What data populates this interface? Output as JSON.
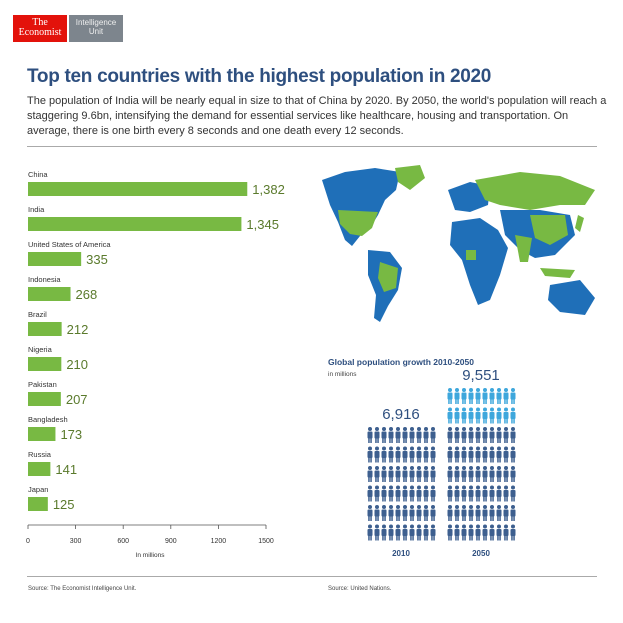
{
  "logo": {
    "brand": "The Economist",
    "unit": "Intelligence Unit"
  },
  "title": "Top ten countries with the highest population in 2020",
  "subtitle": "The population of India will be nearly equal in size to that of China by 2020. By 2050, the world's population will reach a staggering 9.6bn, intensifying the demand for essential services like healthcare, housing and transportation. On average, there is one birth every 8 seconds and one death every 12 seconds.",
  "chart_data": [
    {
      "type": "bar",
      "orientation": "horizontal",
      "categories": [
        "China",
        "India",
        "United States of America",
        "Indonesia",
        "Brazil",
        "Nigeria",
        "Pakistan",
        "Bangladesh",
        "Russia",
        "Japan"
      ],
      "values": [
        1382,
        1345,
        335,
        268,
        212,
        210,
        207,
        173,
        141,
        125
      ],
      "value_labels": [
        "1,382",
        "1,345",
        "335",
        "268",
        "212",
        "210",
        "207",
        "173",
        "141",
        "125"
      ],
      "xlabel": "In millions",
      "xlim": [
        0,
        1500
      ],
      "xticks": [
        0,
        300,
        600,
        900,
        1200,
        1500
      ],
      "color": "#78b943",
      "label_color": "#5a7a2c"
    },
    {
      "type": "pictogram",
      "title": "Global population growth 2010-2050",
      "subtitle": "in millions",
      "categories": [
        "2010",
        "2050"
      ],
      "values": [
        6916,
        9551
      ],
      "value_labels": [
        "6,916",
        "9,551"
      ],
      "color": "#3d5f8f",
      "growth_color": "#3ea7dc"
    }
  ],
  "map": {
    "colors": {
      "highlight": "#78b943",
      "other": "#1f6fb8"
    }
  },
  "sources": {
    "left": "Source: The Economist Intelligence Unit.",
    "right": "Source: United Nations."
  }
}
